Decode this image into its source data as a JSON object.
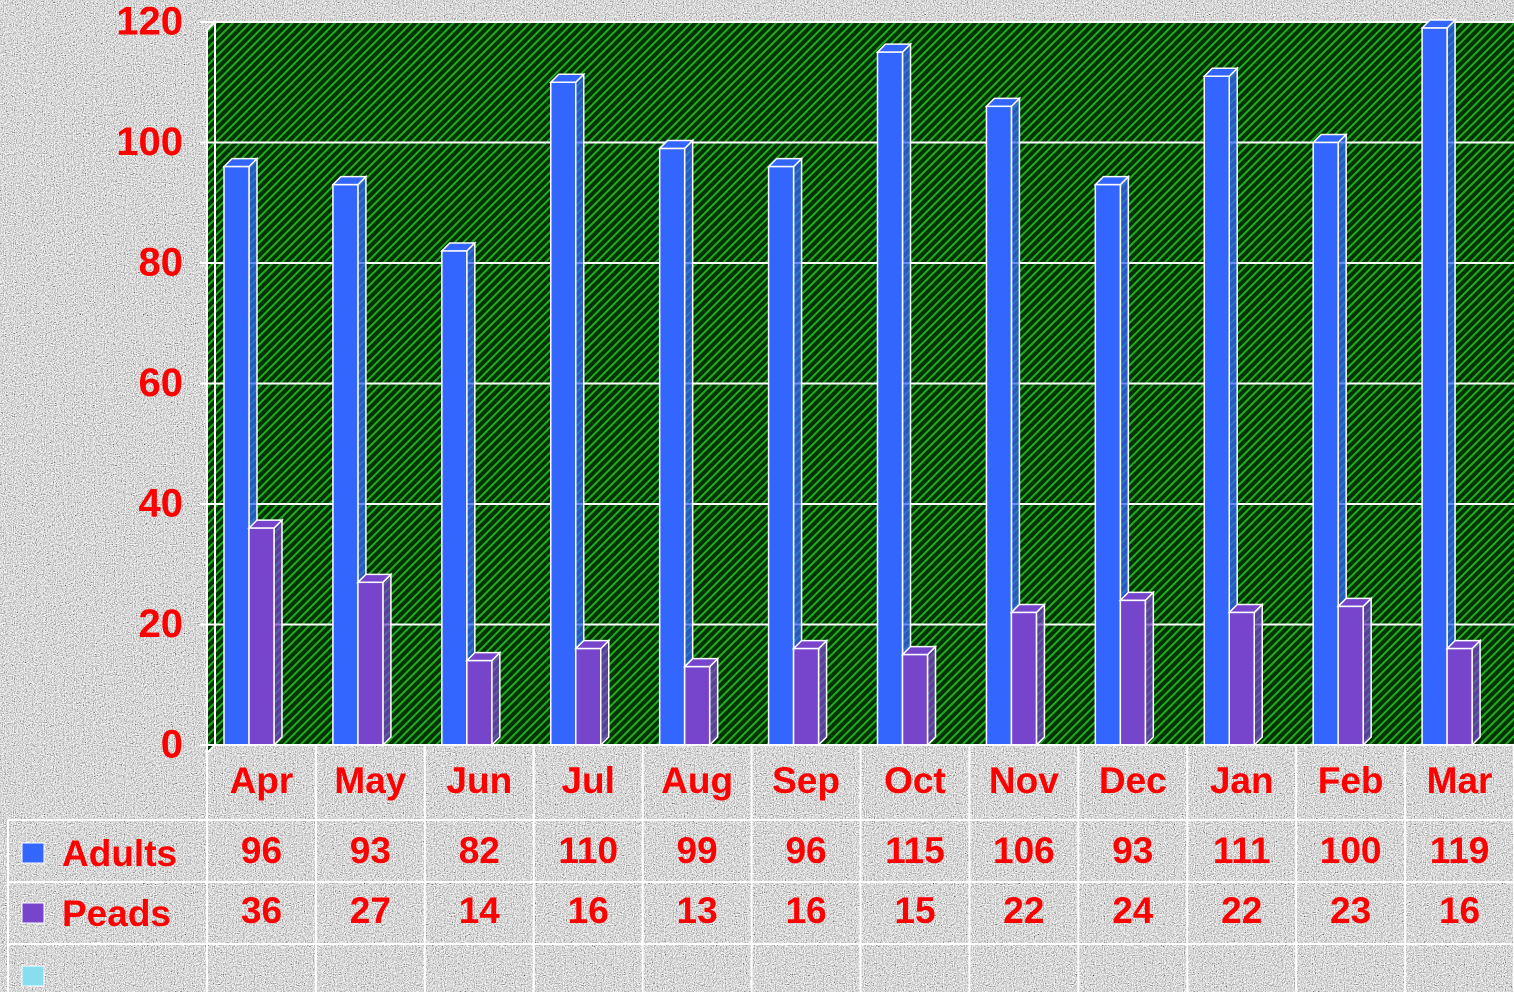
{
  "chart_data": {
    "type": "bar",
    "categories": [
      "Apr",
      "May",
      "Jun",
      "Jul",
      "Aug",
      "Sep",
      "Oct",
      "Nov",
      "Dec",
      "Jan",
      "Feb",
      "Mar"
    ],
    "series": [
      {
        "name": "Adults",
        "color": "#3366ff",
        "values": [
          96,
          93,
          82,
          110,
          99,
          96,
          115,
          106,
          93,
          111,
          100,
          119
        ]
      },
      {
        "name": "Peads",
        "color": "#7744cc",
        "values": [
          36,
          27,
          14,
          16,
          13,
          16,
          15,
          22,
          24,
          22,
          23,
          16
        ]
      }
    ],
    "ylim": [
      0,
      120
    ],
    "yticks": [
      0,
      20,
      40,
      60,
      80,
      100,
      120
    ],
    "grid": true
  }
}
